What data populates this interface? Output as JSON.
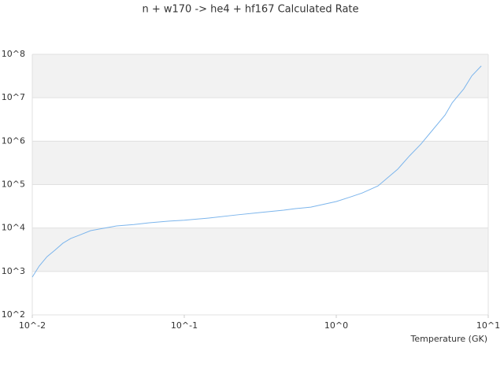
{
  "chart_data": {
    "type": "line",
    "title": "n + w170 -> he4 + hf167 Calculated Rate",
    "x_label": "Temperature (GK)",
    "x_log": true,
    "y_log": true,
    "xlim": [
      0.01,
      10
    ],
    "ylim": [
      100,
      100000000
    ],
    "xticks": [
      {
        "value": 0.01,
        "label": "10^-2"
      },
      {
        "value": 0.1,
        "label": "10^-1"
      },
      {
        "value": 1,
        "label": "10^0"
      },
      {
        "value": 10,
        "label": "10^1"
      }
    ],
    "yticks": [
      {
        "value": 100,
        "label": "10^2"
      },
      {
        "value": 1000,
        "label": "10^3"
      },
      {
        "value": 10000,
        "label": "10^4"
      },
      {
        "value": 100000,
        "label": "10^5"
      },
      {
        "value": 1000000,
        "label": "10^6"
      },
      {
        "value": 10000000,
        "label": "10^7"
      },
      {
        "value": 100000000,
        "label": "10^8"
      }
    ],
    "grid": true,
    "band_color": "#f2f2f2",
    "series": [
      {
        "color": "#7cb5ec",
        "x": [
          0.01,
          0.0111,
          0.0125,
          0.0141,
          0.0159,
          0.0179,
          0.0202,
          0.0242,
          0.0289,
          0.0359,
          0.0466,
          0.059,
          0.0795,
          0.1,
          0.145,
          0.22,
          0.314,
          0.45,
          0.54,
          0.68,
          1.0,
          1.24,
          1.48,
          1.88,
          2.53,
          3.03,
          3.6,
          4.3,
          5.2,
          5.8,
          6.9,
          7.8,
          9.0
        ],
        "values": [
          741,
          1330,
          2190,
          3090,
          4470,
          5750,
          6760,
          8710,
          9770,
          11200,
          12000,
          13200,
          14400,
          15100,
          17000,
          20000,
          22700,
          25700,
          28000,
          30300,
          40700,
          52000,
          64000,
          93000,
          224000,
          457000,
          850000,
          1800000,
          4000000,
          7700000,
          16000000,
          32000000,
          54000000
        ]
      }
    ]
  }
}
